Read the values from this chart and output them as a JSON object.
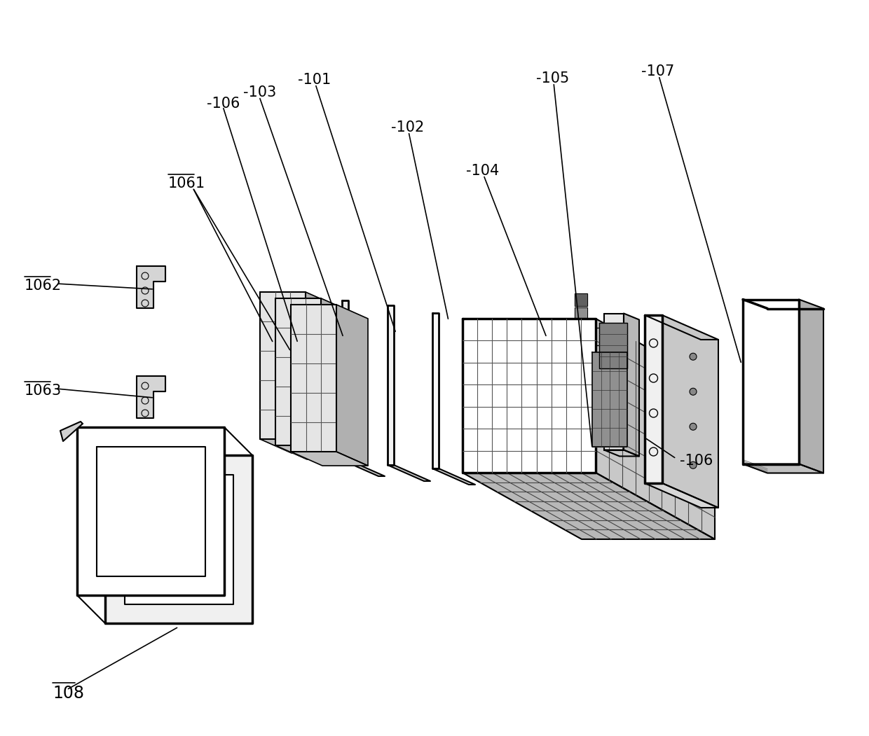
{
  "bg_color": "#ffffff",
  "line_color": "#000000",
  "fig_width": 12.4,
  "fig_height": 10.51
}
